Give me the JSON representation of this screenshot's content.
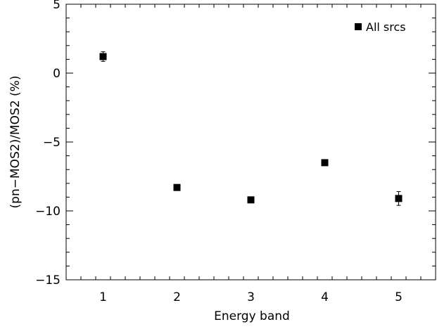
{
  "chart_data": {
    "type": "scatter",
    "title": "",
    "xlabel": "Energy band",
    "ylabel": "(pn−MOS2)/MOS2 (%)",
    "xlim": [
      0.5,
      5.5
    ],
    "ylim": [
      -15,
      5
    ],
    "xticks": [
      1,
      2,
      3,
      4,
      5
    ],
    "yticks": [
      -15,
      -10,
      -5,
      0,
      5
    ],
    "grid": false,
    "legend_position": "top-right",
    "series": [
      {
        "name": "All srcs",
        "marker": "filled-square",
        "color": "#000000",
        "points": [
          {
            "x": 1,
            "y": 1.2,
            "err": 0.35
          },
          {
            "x": 2,
            "y": -8.3,
            "err": 0.1
          },
          {
            "x": 3,
            "y": -9.2,
            "err": 0.1
          },
          {
            "x": 4,
            "y": -6.5,
            "err": 0.1
          },
          {
            "x": 5,
            "y": -9.1,
            "err": 0.5
          }
        ]
      }
    ]
  }
}
